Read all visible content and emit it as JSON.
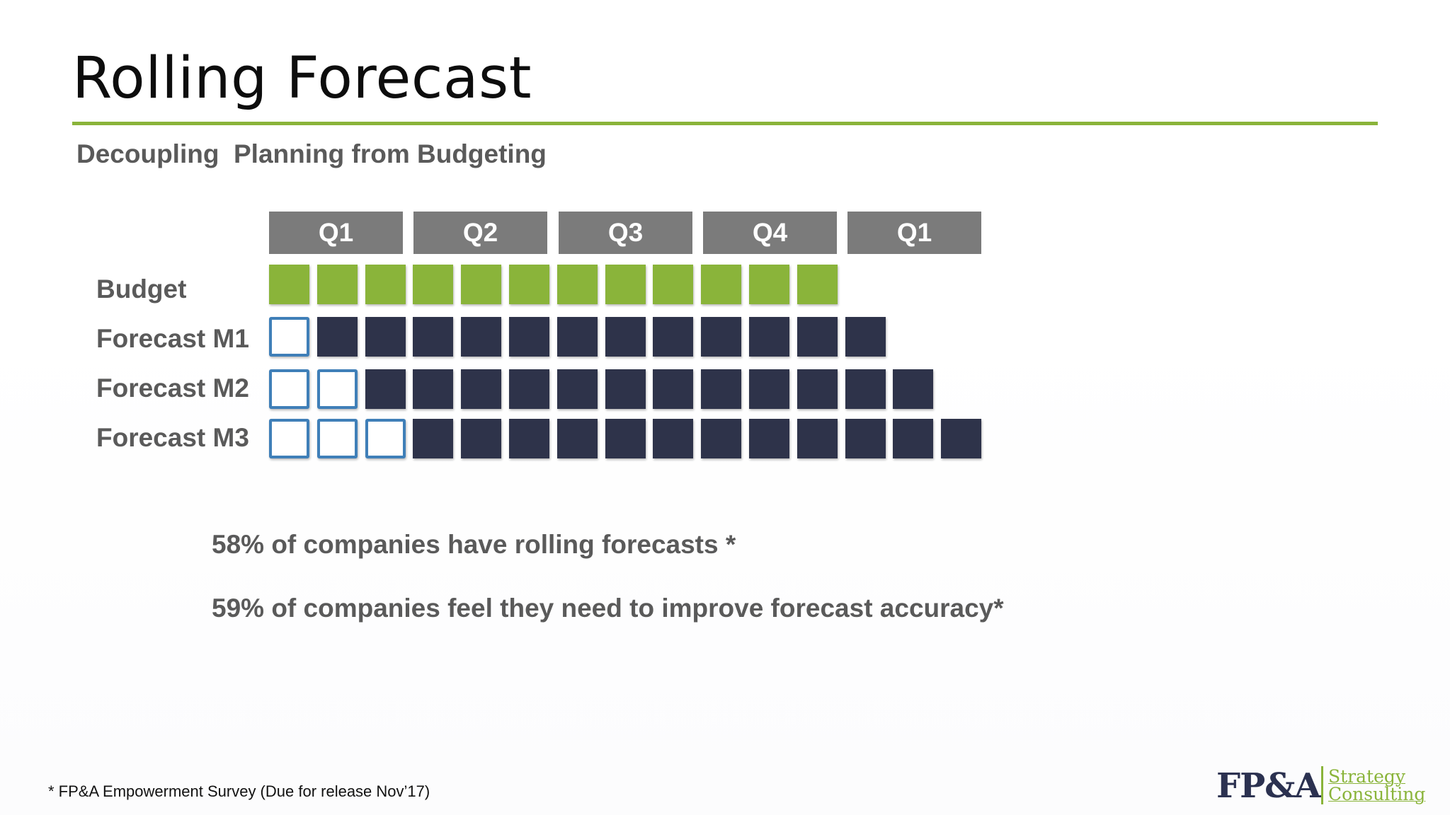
{
  "slide": {
    "title": "Rolling Forecast",
    "subtitle": "Decoupling  Planning from Budgeting"
  },
  "timeline": {
    "quarters": [
      "Q1",
      "Q2",
      "Q3",
      "Q4",
      "Q1"
    ],
    "rows": [
      {
        "label": "Budget",
        "actual_months": 0,
        "budget_months": 12,
        "forecast_months": 0
      },
      {
        "label": "Forecast M1",
        "actual_months": 1,
        "budget_months": 0,
        "forecast_months": 12
      },
      {
        "label": "Forecast M2",
        "actual_months": 2,
        "budget_months": 0,
        "forecast_months": 12
      },
      {
        "label": "Forecast M3",
        "actual_months": 3,
        "budget_months": 0,
        "forecast_months": 12
      }
    ],
    "colors": {
      "budget": "#8ab43a",
      "forecast": "#2e334a",
      "actual_outline": "#3f7fb8",
      "quarter_header": "#7b7b7b"
    }
  },
  "stats": [
    "58% of companies have rolling forecasts *",
    "59% of companies feel they need to improve forecast accuracy*"
  ],
  "footnote": "* FP&A Empowerment Survey (Due for release Nov’17)",
  "logo": {
    "main": "FP&A",
    "sub_line1": "Strategy",
    "sub_line2": "Consulting"
  }
}
